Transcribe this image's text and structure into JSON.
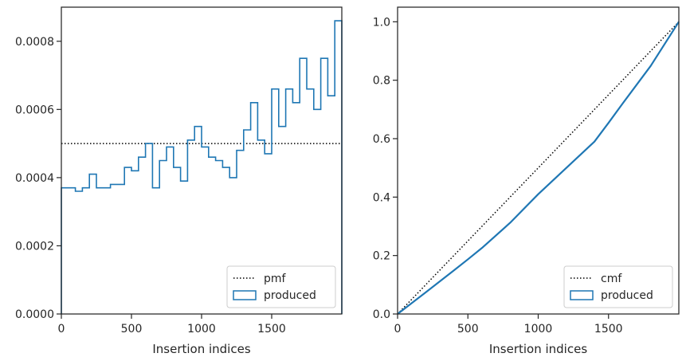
{
  "colors": {
    "series": "#1f77b4",
    "reference": "#000000",
    "frame": "#262626"
  },
  "chart_data": [
    {
      "type": "histogram-step",
      "xlabel": "Insertion indices",
      "ylabel": "",
      "xlim": [
        0,
        2000
      ],
      "ylim": [
        0,
        0.0009
      ],
      "xticks": [
        0,
        500,
        1000,
        1500
      ],
      "xtick_labels": [
        "0",
        "500",
        "1000",
        "1500"
      ],
      "yticks": [
        0,
        0.0002,
        0.0004,
        0.0006,
        0.0008
      ],
      "ytick_labels": [
        "0.0000",
        "0.0002",
        "0.0004",
        "0.0006",
        "0.0008"
      ],
      "legend": {
        "position": "bottom-right",
        "entries": [
          "pmf",
          "produced"
        ]
      },
      "reference": {
        "name": "pmf",
        "style": "dotted",
        "value": 0.0005
      },
      "series": [
        {
          "name": "produced",
          "bin_width": 50,
          "bin_start": 0,
          "values": [
            0.00037,
            0.00037,
            0.00036,
            0.00037,
            0.00041,
            0.00037,
            0.00037,
            0.00038,
            0.00038,
            0.00043,
            0.00042,
            0.00046,
            0.0005,
            0.00037,
            0.00045,
            0.00049,
            0.00043,
            0.00039,
            0.00051,
            0.00055,
            0.00049,
            0.00046,
            0.00045,
            0.00043,
            0.0004,
            0.00048,
            0.00054,
            0.00062,
            0.00051,
            0.00047,
            0.00066,
            0.00055,
            0.00066,
            0.00062,
            0.00075,
            0.00066,
            0.0006,
            0.00075,
            0.00064,
            0.00086
          ]
        }
      ]
    },
    {
      "type": "line",
      "xlabel": "Insertion indices",
      "ylabel": "",
      "xlim": [
        0,
        2000
      ],
      "ylim": [
        0,
        1.05
      ],
      "xticks": [
        0,
        500,
        1000,
        1500
      ],
      "xtick_labels": [
        "0",
        "500",
        "1000",
        "1500"
      ],
      "yticks": [
        0,
        0.2,
        0.4,
        0.6,
        0.8,
        1.0
      ],
      "ytick_labels": [
        "0.0",
        "0.2",
        "0.4",
        "0.6",
        "0.8",
        "1.0"
      ],
      "legend": {
        "position": "bottom-right",
        "entries": [
          "cmf",
          "produced"
        ]
      },
      "reference": {
        "name": "cmf",
        "style": "dotted",
        "x": [
          0,
          2000
        ],
        "y": [
          0,
          1.0
        ]
      },
      "series": [
        {
          "name": "produced",
          "x": [
            0,
            200,
            400,
            500,
            600,
            800,
            1000,
            1200,
            1400,
            1500,
            1600,
            1800,
            2000
          ],
          "y": [
            0,
            0.074,
            0.149,
            0.187,
            0.226,
            0.312,
            0.41,
            0.5,
            0.59,
            0.654,
            0.72,
            0.849,
            1.0
          ]
        }
      ]
    }
  ]
}
